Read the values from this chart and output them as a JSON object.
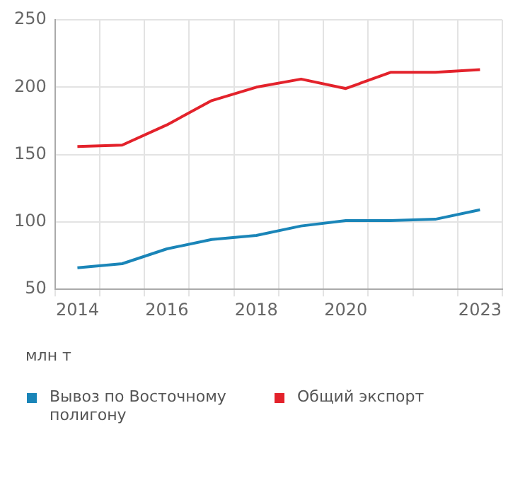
{
  "chart_data": {
    "type": "line",
    "ylabel": "млн т",
    "categories": [
      "2014",
      null,
      "2016",
      null,
      "2018",
      null,
      "2020",
      null,
      null,
      "2023"
    ],
    "series": [
      {
        "name": "Вывоз по Восточному полигону",
        "color": "#1a85b8",
        "values": [
          66,
          69,
          80,
          87,
          90,
          97,
          101,
          101,
          102,
          109
        ]
      },
      {
        "name": "Общий экспорт",
        "color": "#e3222b",
        "values": [
          156,
          157,
          172,
          190,
          200,
          206,
          199,
          211,
          211,
          213
        ]
      }
    ],
    "ylim": [
      50,
      250
    ],
    "yticks": [
      50,
      100,
      150,
      200,
      250
    ],
    "grid": true,
    "legend": "bottom",
    "marker": "none",
    "line_style": "solid"
  }
}
